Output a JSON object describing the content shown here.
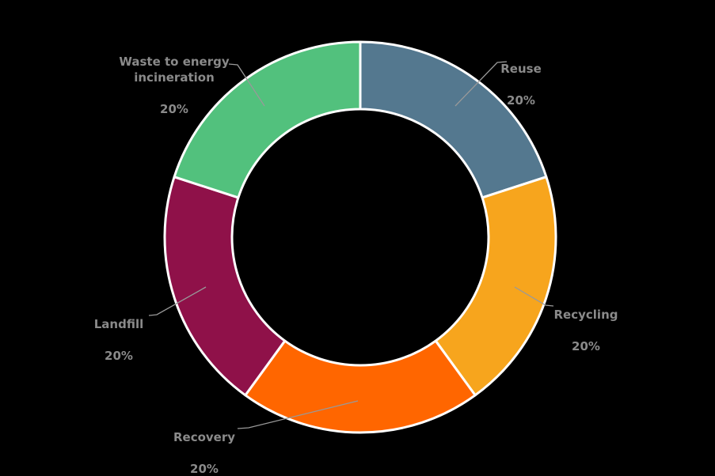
{
  "chart_data": {
    "type": "pie",
    "subtype": "donut",
    "title": "",
    "hole_ratio": 0.66,
    "background_color": "#000000",
    "label_text_color": "#8a8a8a",
    "leader_line_color": "#999999",
    "slice_divider_color": "#ffffff",
    "legend": "none",
    "categories": [
      "Reuse",
      "Recycling",
      "Recovery",
      "Landfill",
      "Waste to energy incineration"
    ],
    "values": [
      20,
      20,
      20,
      20,
      20
    ],
    "slices": [
      {
        "name": "Reuse",
        "label": "Reuse",
        "pct_label": "20%",
        "value": 20,
        "color": "#54788f"
      },
      {
        "name": "Recycling",
        "label": "Recycling",
        "pct_label": "20%",
        "value": 20,
        "color": "#f7a51d"
      },
      {
        "name": "Recovery",
        "label": "Recovery",
        "pct_label": "20%",
        "value": 20,
        "color": "#ff6600"
      },
      {
        "name": "Landfill",
        "label": "Landfill",
        "pct_label": "20%",
        "value": 20,
        "color": "#8f1149"
      },
      {
        "name": "Waste to energy incineration",
        "label": "Waste to energy\nincineration",
        "pct_label": "20%",
        "value": 20,
        "color": "#52c17d"
      }
    ]
  }
}
